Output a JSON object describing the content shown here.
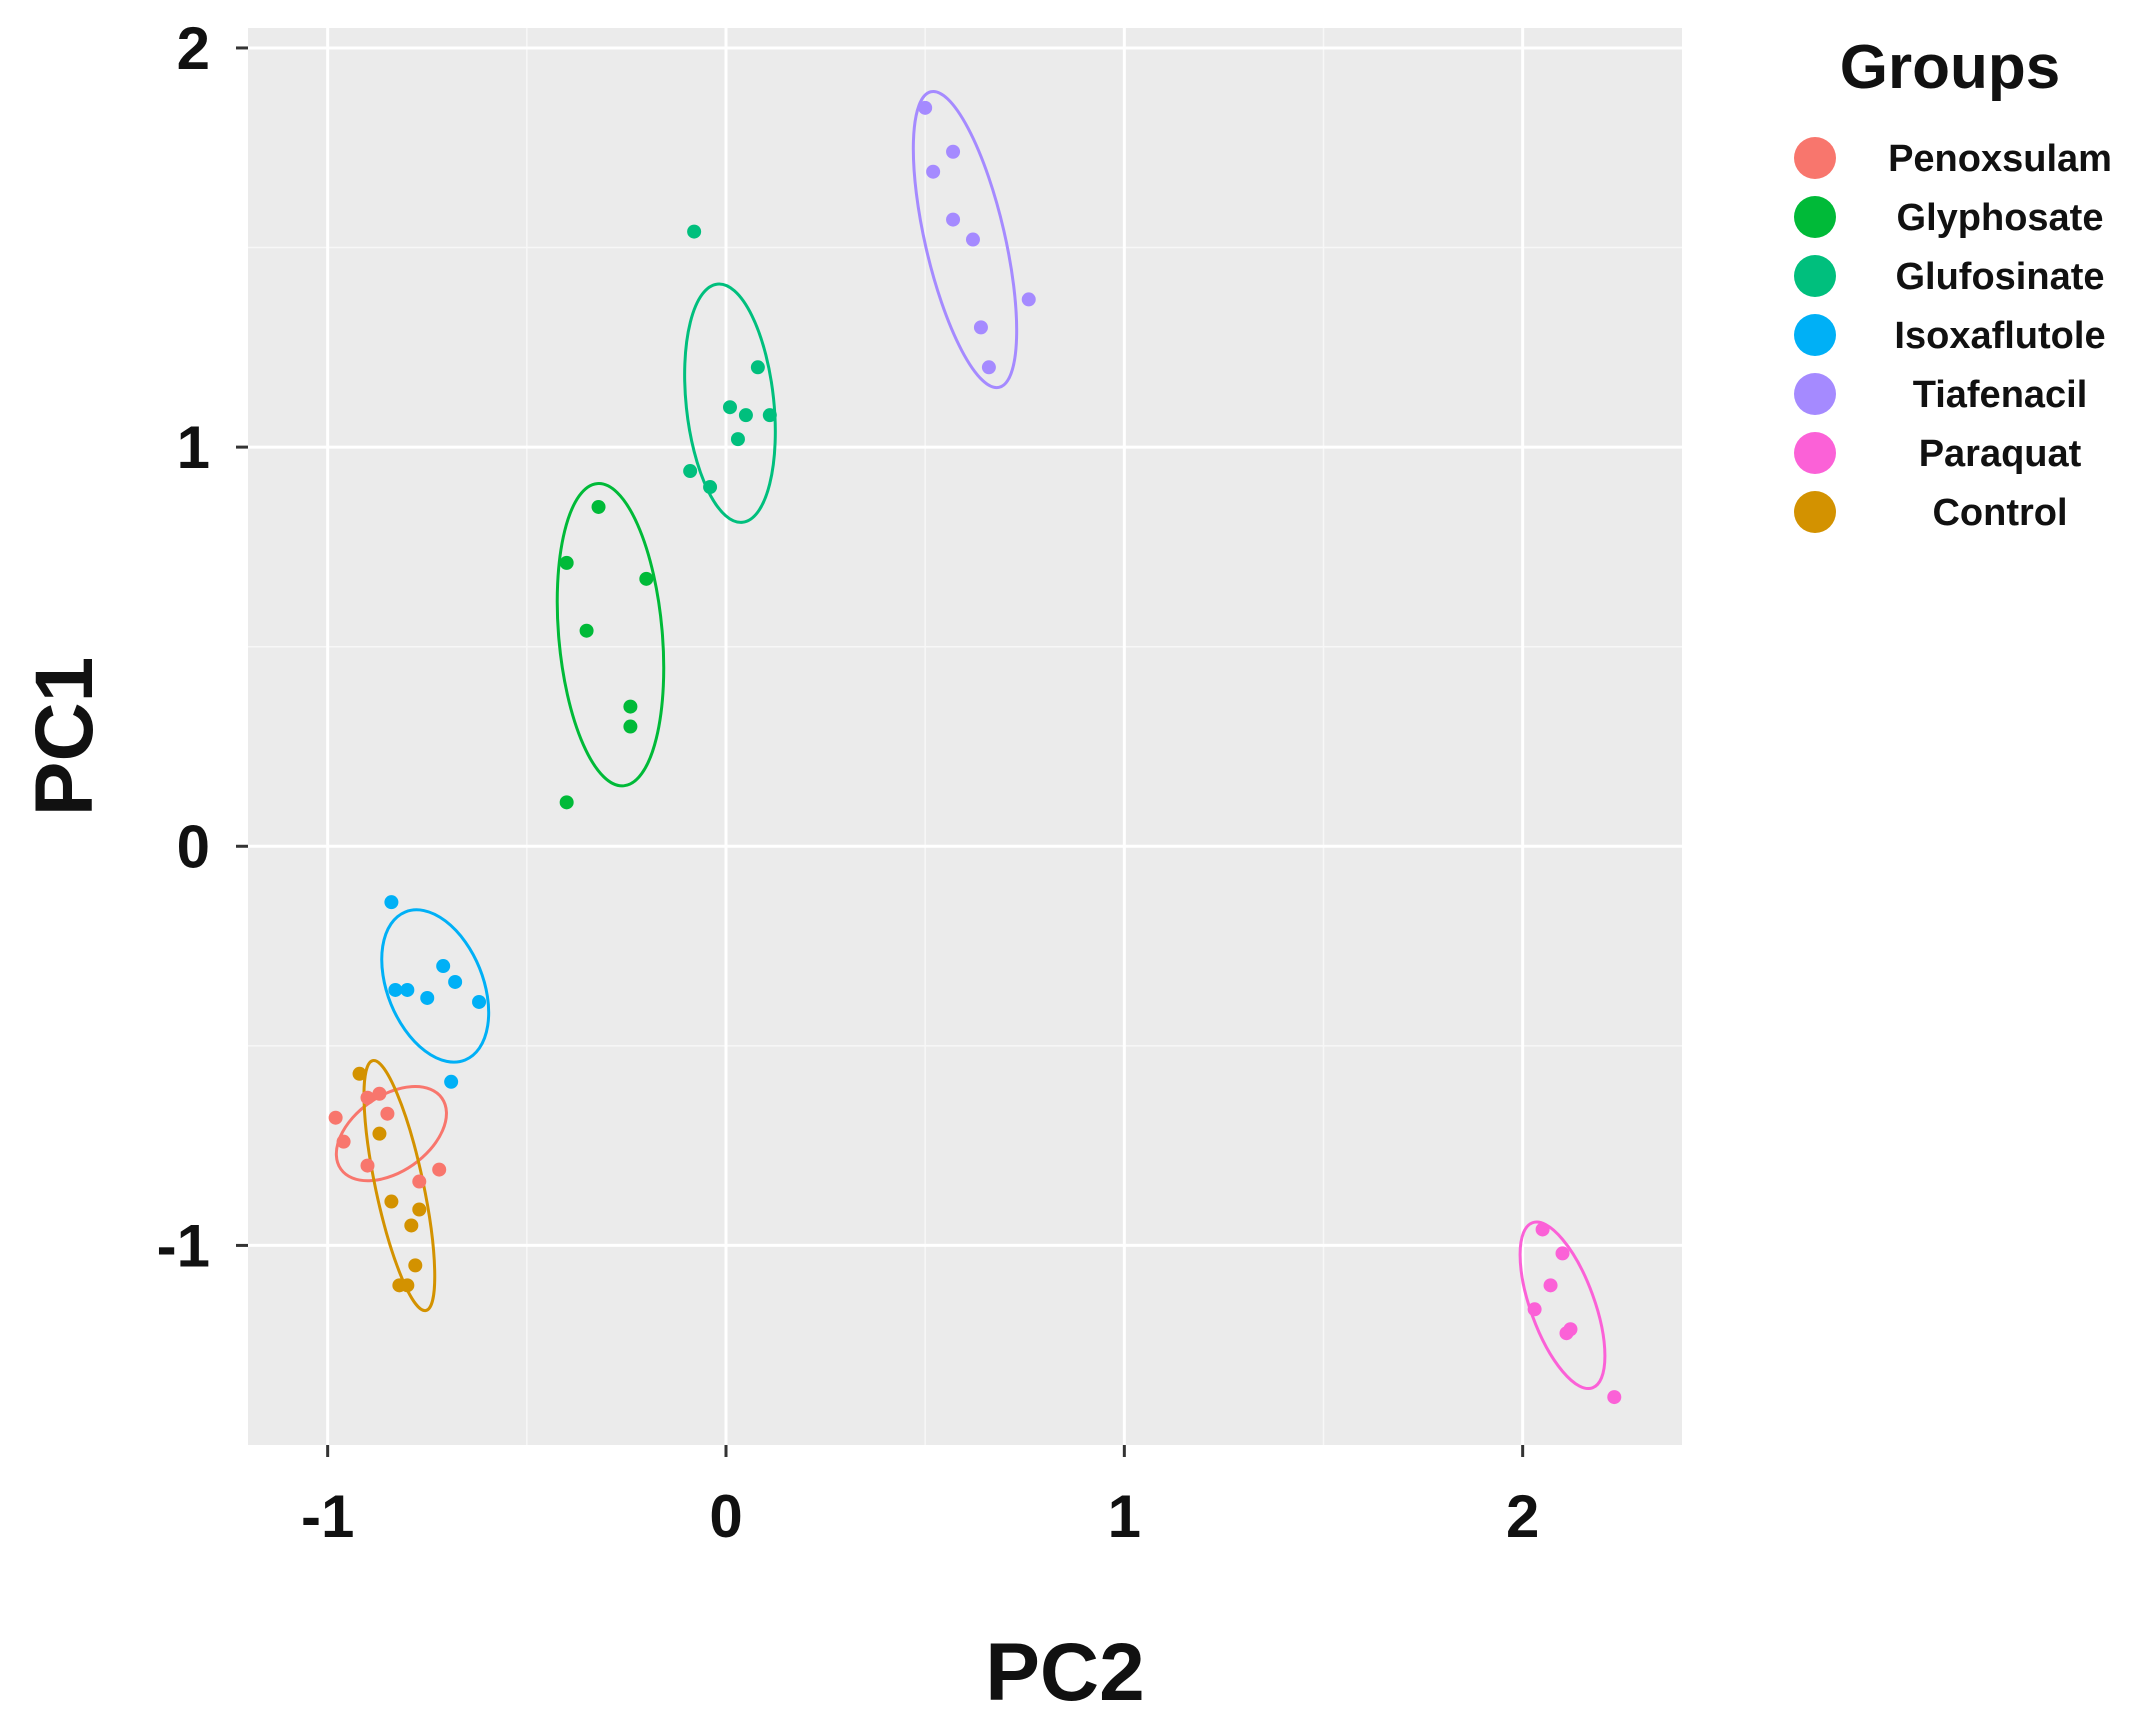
{
  "chart_data": {
    "type": "scatter",
    "title": "",
    "xlabel": "PC2",
    "ylabel": "PC1",
    "xlim": [
      -1.2,
      2.4
    ],
    "ylim": [
      -1.5,
      2.05
    ],
    "xticks": [
      -1,
      0,
      1,
      2
    ],
    "yticks": [
      -1,
      0,
      1,
      2
    ],
    "grid": true,
    "background": "#ebebeb",
    "legend": {
      "title": "Groups",
      "position": "right"
    },
    "series": [
      {
        "name": "Penoxsulam",
        "color": "#f8766d",
        "points": [
          [
            -0.98,
            -0.68
          ],
          [
            -0.96,
            -0.74
          ],
          [
            -0.9,
            -0.63
          ],
          [
            -0.87,
            -0.62
          ],
          [
            -0.85,
            -0.67
          ],
          [
            -0.77,
            -0.84
          ],
          [
            -0.72,
            -0.81
          ],
          [
            -0.9,
            -0.8
          ]
        ],
        "ellipse": {
          "cx": -0.84,
          "cy": -0.72,
          "rx": 0.155,
          "ry": 0.095,
          "angle_deg": -35
        }
      },
      {
        "name": "Glyphosate",
        "color": "#00ba38",
        "points": [
          [
            -0.32,
            0.85
          ],
          [
            -0.4,
            0.71
          ],
          [
            -0.2,
            0.67
          ],
          [
            -0.35,
            0.54
          ],
          [
            -0.24,
            0.35
          ],
          [
            -0.24,
            0.3
          ],
          [
            -0.4,
            0.11
          ]
        ],
        "ellipse": {
          "cx": -0.29,
          "cy": 0.53,
          "rx": 0.13,
          "ry": 0.38,
          "angle_deg": -5
        }
      },
      {
        "name": "Glufosinate",
        "color": "#00bf7d",
        "points": [
          [
            -0.08,
            1.54
          ],
          [
            0.08,
            1.2
          ],
          [
            0.01,
            1.1
          ],
          [
            0.05,
            1.08
          ],
          [
            0.11,
            1.08
          ],
          [
            0.03,
            1.02
          ],
          [
            -0.09,
            0.94
          ],
          [
            -0.04,
            0.9
          ]
        ],
        "ellipse": {
          "cx": 0.01,
          "cy": 1.11,
          "rx": 0.11,
          "ry": 0.3,
          "angle_deg": -6
        }
      },
      {
        "name": "Isoxaflutole",
        "color": "#00b0f6",
        "points": [
          [
            -0.84,
            -0.14
          ],
          [
            -0.71,
            -0.3
          ],
          [
            -0.68,
            -0.34
          ],
          [
            -0.83,
            -0.36
          ],
          [
            -0.8,
            -0.36
          ],
          [
            -0.75,
            -0.38
          ],
          [
            -0.62,
            -0.39
          ],
          [
            -0.69,
            -0.59
          ]
        ],
        "ellipse": {
          "cx": -0.73,
          "cy": -0.35,
          "rx": 0.12,
          "ry": 0.2,
          "angle_deg": -22
        }
      },
      {
        "name": "Tiafenacil",
        "color": "#a58aff",
        "points": [
          [
            0.5,
            1.85
          ],
          [
            0.57,
            1.74
          ],
          [
            0.52,
            1.69
          ],
          [
            0.57,
            1.57
          ],
          [
            0.62,
            1.52
          ],
          [
            0.76,
            1.37
          ],
          [
            0.64,
            1.3
          ],
          [
            0.66,
            1.2
          ]
        ],
        "ellipse": {
          "cx": 0.6,
          "cy": 1.52,
          "rx": 0.1,
          "ry": 0.38,
          "angle_deg": -13
        }
      },
      {
        "name": "Paraquat",
        "color": "#fb61d7",
        "points": [
          [
            2.05,
            -0.96
          ],
          [
            2.1,
            -1.02
          ],
          [
            2.07,
            -1.1
          ],
          [
            2.03,
            -1.16
          ],
          [
            2.12,
            -1.21
          ],
          [
            2.11,
            -1.22
          ],
          [
            2.23,
            -1.38
          ]
        ],
        "ellipse": {
          "cx": 2.1,
          "cy": -1.15,
          "rx": 0.08,
          "ry": 0.22,
          "angle_deg": -20
        }
      },
      {
        "name": "Control",
        "color": "#d39200",
        "points": [
          [
            -0.92,
            -0.57
          ],
          [
            -0.87,
            -0.72
          ],
          [
            -0.84,
            -0.89
          ],
          [
            -0.77,
            -0.91
          ],
          [
            -0.79,
            -0.95
          ],
          [
            -0.78,
            -1.05
          ],
          [
            -0.82,
            -1.1
          ],
          [
            -0.8,
            -1.1
          ]
        ],
        "ellipse": {
          "cx": -0.82,
          "cy": -0.85,
          "rx": 0.06,
          "ry": 0.32,
          "angle_deg": -12
        }
      }
    ]
  }
}
